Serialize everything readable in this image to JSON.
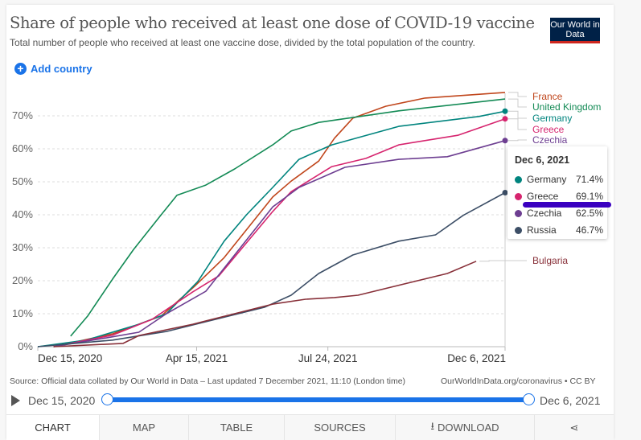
{
  "header": {
    "title": "Share of people who received at least one dose of COVID-19 vaccine",
    "subtitle": "Total number of people who received at least one vaccine dose, divided by the total population of the country.",
    "logo": "Our World in Data",
    "add_country": "Add country",
    "add_icon": "plus-circle-icon"
  },
  "chart_data": {
    "type": "line",
    "title": "Share of people who received at least one dose of COVID-19 vaccine",
    "xlabel": "",
    "ylabel": "",
    "xlim": [
      "2020-12-15",
      "2021-12-06"
    ],
    "ylim": [
      0,
      75
    ],
    "y_ticks": [
      "0%",
      "10%",
      "20%",
      "30%",
      "40%",
      "50%",
      "60%",
      "70%"
    ],
    "x_ticks": [
      {
        "date": "2020-12-15",
        "label": "Dec 15, 2020"
      },
      {
        "date": "2021-04-15",
        "label": "Apr 15, 2021"
      },
      {
        "date": "2021-07-24",
        "label": "Jul 24, 2021"
      },
      {
        "date": "2021-12-06",
        "label": "Dec 6, 2021"
      }
    ],
    "grid": "horizontal dashed",
    "legend": "right, inline labels",
    "series": [
      {
        "name": "France",
        "color": "#c0461c",
        "end_dot": false,
        "points": [
          [
            "2020-12-27",
            0
          ],
          [
            "2021-02-10",
            3.9
          ],
          [
            "2021-03-19",
            9.3
          ],
          [
            "2021-04-14",
            18.5
          ],
          [
            "2021-05-06",
            27
          ],
          [
            "2021-06-12",
            45.4
          ],
          [
            "2021-06-26",
            50.2
          ],
          [
            "2021-07-17",
            56.3
          ],
          [
            "2021-07-29",
            63.2
          ],
          [
            "2021-08-12",
            69.3
          ],
          [
            "2021-09-06",
            72.9
          ],
          [
            "2021-10-06",
            75.4
          ],
          [
            "2021-12-06",
            77.1
          ]
        ]
      },
      {
        "name": "United Kingdom",
        "color": "#138a55",
        "end_dot": false,
        "points": [
          [
            "2021-01-09",
            3.2
          ],
          [
            "2021-01-22",
            9.3
          ],
          [
            "2021-02-10",
            20.5
          ],
          [
            "2021-02-26",
            29.5
          ],
          [
            "2021-03-19",
            40
          ],
          [
            "2021-03-31",
            45.9
          ],
          [
            "2021-04-22",
            49
          ],
          [
            "2021-05-14",
            53.9
          ],
          [
            "2021-06-12",
            61.2
          ],
          [
            "2021-06-26",
            65.4
          ],
          [
            "2021-07-17",
            68
          ],
          [
            "2021-09-16",
            71.5
          ],
          [
            "2021-12-06",
            75.1
          ]
        ]
      },
      {
        "name": "Germany",
        "color": "#00847e",
        "end_dot": true,
        "points": [
          [
            "2020-12-15",
            0
          ],
          [
            "2021-01-21",
            2
          ],
          [
            "2021-03-02",
            6.8
          ],
          [
            "2021-03-23",
            10
          ],
          [
            "2021-04-16",
            19.8
          ],
          [
            "2021-05-06",
            32
          ],
          [
            "2021-05-23",
            40
          ],
          [
            "2021-06-12",
            48.3
          ],
          [
            "2021-07-02",
            56.8
          ],
          [
            "2021-07-27",
            61.2
          ],
          [
            "2021-09-16",
            66.8
          ],
          [
            "2021-11-16",
            69.8
          ],
          [
            "2021-12-06",
            71.4
          ]
        ]
      },
      {
        "name": "Greece",
        "color": "#d6246e",
        "end_dot": true,
        "points": [
          [
            "2020-12-27",
            0
          ],
          [
            "2021-02-10",
            3.5
          ],
          [
            "2021-03-12",
            8.3
          ],
          [
            "2021-04-12",
            16.6
          ],
          [
            "2021-05-02",
            21.5
          ],
          [
            "2021-06-12",
            41
          ],
          [
            "2021-06-26",
            47
          ],
          [
            "2021-07-27",
            54.6
          ],
          [
            "2021-08-22",
            57.1
          ],
          [
            "2021-09-16",
            61.2
          ],
          [
            "2021-10-31",
            64.1
          ],
          [
            "2021-12-06",
            69.1
          ]
        ]
      },
      {
        "name": "Czechia",
        "color": "#6d3e91",
        "end_dot": true,
        "points": [
          [
            "2020-12-27",
            0
          ],
          [
            "2021-02-10",
            3
          ],
          [
            "2021-03-02",
            4.4
          ],
          [
            "2021-03-23",
            10
          ],
          [
            "2021-04-22",
            16.8
          ],
          [
            "2021-06-12",
            42.4
          ],
          [
            "2021-07-02",
            48.3
          ],
          [
            "2021-08-06",
            54.4
          ],
          [
            "2021-09-16",
            56.8
          ],
          [
            "2021-10-23",
            57.6
          ],
          [
            "2021-12-06",
            62.5
          ]
        ]
      },
      {
        "name": "Russia",
        "color": "#3c4e66",
        "end_dot": true,
        "points": [
          [
            "2020-12-15",
            0
          ],
          [
            "2021-02-10",
            2
          ],
          [
            "2021-03-23",
            4.6
          ],
          [
            "2021-06-06",
            12
          ],
          [
            "2021-06-26",
            15.6
          ],
          [
            "2021-07-17",
            22.2
          ],
          [
            "2021-08-12",
            27.8
          ],
          [
            "2021-09-16",
            32
          ],
          [
            "2021-10-14",
            33.9
          ],
          [
            "2021-11-04",
            39.8
          ],
          [
            "2021-12-06",
            46.7
          ]
        ]
      },
      {
        "name": "Bulgaria",
        "color": "#883039",
        "end_dot": false,
        "points": [
          [
            "2020-12-27",
            0
          ],
          [
            "2021-02-18",
            1
          ],
          [
            "2021-03-02",
            3.4
          ],
          [
            "2021-04-12",
            6.8
          ],
          [
            "2021-06-12",
            12.9
          ],
          [
            "2021-07-07",
            14.4
          ],
          [
            "2021-07-29",
            14.9
          ],
          [
            "2021-08-16",
            15.6
          ],
          [
            "2021-10-23",
            22.2
          ],
          [
            "2021-11-14",
            25.9
          ]
        ]
      }
    ],
    "tooltip": {
      "date": "Dec 6, 2021",
      "rows": [
        {
          "name": "Germany",
          "value": "71.4%",
          "color": "#00847e"
        },
        {
          "name": "Greece",
          "value": "69.1%",
          "color": "#d6246e"
        },
        {
          "name": "Czechia",
          "value": "62.5%",
          "color": "#6d3e91"
        },
        {
          "name": "Russia",
          "value": "46.7%",
          "color": "#3c4e66"
        }
      ]
    }
  },
  "footer": {
    "source": "Source: Official data collated by Our World in Data – Last updated 7 December 2021, 11:10 (London time)",
    "credit": "OurWorldInData.org/coronavirus • CC BY"
  },
  "timeline": {
    "start": "Dec 15, 2020",
    "end": "Dec 6, 2021",
    "play_icon": "play-icon"
  },
  "tabs": [
    {
      "label": "CHART",
      "active": true
    },
    {
      "label": "MAP"
    },
    {
      "label": "TABLE"
    },
    {
      "label": "SOURCES"
    },
    {
      "label": "DOWNLOAD",
      "icon": "download-icon"
    },
    {
      "label": "",
      "icon": "share-icon"
    }
  ]
}
